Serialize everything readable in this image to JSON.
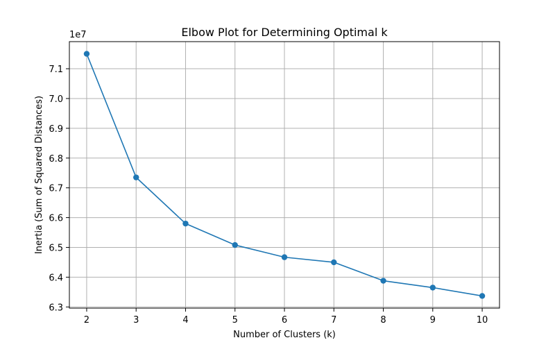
{
  "chart_data": {
    "type": "line",
    "title": "Elbow Plot for Determining Optimal k",
    "xlabel": "Number of Clusters (k)",
    "ylabel": "Inertia (Sum of Squared Distances)",
    "y_offset_label": "1e7",
    "y_scale_factor": 10000000,
    "x": [
      2,
      3,
      4,
      5,
      6,
      7,
      8,
      9,
      10
    ],
    "series": [
      {
        "values": [
          71500000,
          67350000,
          65800000,
          65080000,
          64670000,
          64500000,
          63880000,
          63650000,
          63370000
        ],
        "color": "#1f77b4",
        "marker": "circle"
      }
    ],
    "xticks": [
      2,
      3,
      4,
      5,
      6,
      7,
      8,
      9,
      10
    ],
    "xtick_labels": [
      "2",
      "3",
      "4",
      "5",
      "6",
      "7",
      "8",
      "9",
      "10"
    ],
    "yticks": [
      63000000,
      64000000,
      65000000,
      66000000,
      67000000,
      68000000,
      69000000,
      70000000,
      71000000
    ],
    "ytick_labels": [
      "6.3",
      "6.4",
      "6.5",
      "6.6",
      "6.7",
      "6.8",
      "6.9",
      "7.0",
      "7.1"
    ],
    "xlim": [
      1.65,
      10.35
    ],
    "ylim": [
      62960000,
      71910000
    ],
    "grid": true,
    "grid_color": "#b0b0b0",
    "axis_color": "#000000"
  }
}
